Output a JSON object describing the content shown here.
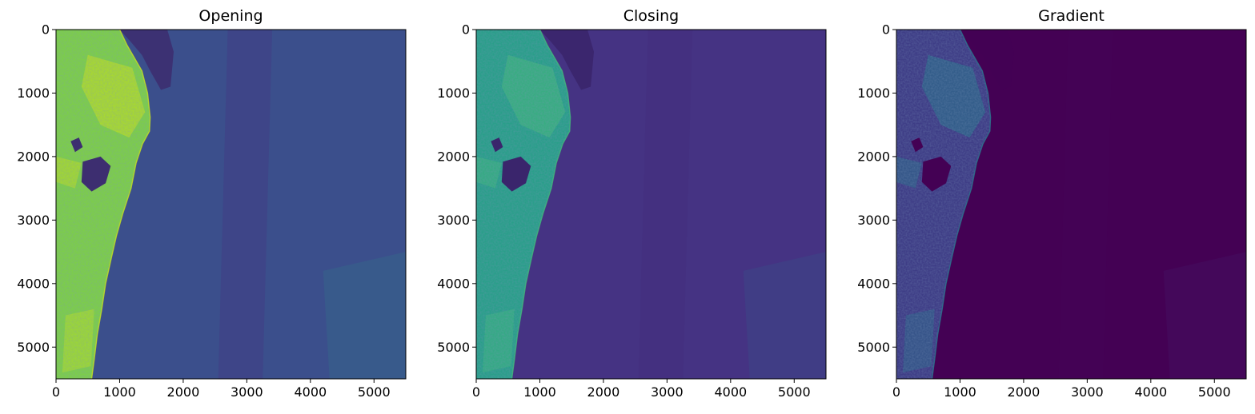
{
  "figure": {
    "panels": [
      {
        "title": "Opening"
      },
      {
        "title": "Closing"
      },
      {
        "title": "Gradient"
      }
    ]
  },
  "chart_data": [
    {
      "type": "heatmap",
      "title": "Opening",
      "colormap": "viridis",
      "xlim": [
        0,
        5500
      ],
      "ylim": [
        5500,
        0
      ],
      "x_ticks": [
        0,
        1000,
        2000,
        3000,
        4000,
        5000
      ],
      "y_ticks": [
        0,
        1000,
        2000,
        3000,
        4000,
        5000
      ],
      "x_tick_labels": [
        "0",
        "1000",
        "2000",
        "3000",
        "4000",
        "5000"
      ],
      "y_tick_labels": [
        "0",
        "1000",
        "2000",
        "3000",
        "4000",
        "5000"
      ],
      "colors": {
        "land": "#7ccd4a",
        "land_bright": "#c9e020",
        "land_dark": "#2f8f8a",
        "water": "#3b4f8c",
        "water_dark": "#453580",
        "lake": "#3d2e70"
      }
    },
    {
      "type": "heatmap",
      "title": "Closing",
      "colormap": "viridis",
      "xlim": [
        0,
        5500
      ],
      "ylim": [
        5500,
        0
      ],
      "x_ticks": [
        0,
        1000,
        2000,
        3000,
        4000,
        5000
      ],
      "y_ticks": [
        0,
        1000,
        2000,
        3000,
        4000,
        5000
      ],
      "x_tick_labels": [
        "0",
        "1000",
        "2000",
        "3000",
        "4000",
        "5000"
      ],
      "y_tick_labels": [
        "0",
        "1000",
        "2000",
        "3000",
        "4000",
        "5000"
      ],
      "colors": {
        "land": "#2a9e8a",
        "land_bright": "#45b87c",
        "land_dark": "#2c6f8e",
        "water": "#453383",
        "water_dark": "#432a7a",
        "lake": "#3a256c"
      }
    },
    {
      "type": "heatmap",
      "title": "Gradient",
      "colormap": "viridis",
      "xlim": [
        0,
        5500
      ],
      "ylim": [
        5500,
        0
      ],
      "x_ticks": [
        0,
        1000,
        2000,
        3000,
        4000,
        5000
      ],
      "y_ticks": [
        0,
        1000,
        2000,
        3000,
        4000,
        5000
      ],
      "x_tick_labels": [
        "0",
        "1000",
        "2000",
        "3000",
        "4000",
        "5000"
      ],
      "y_tick_labels": [
        "0",
        "1000",
        "2000",
        "3000",
        "4000",
        "5000"
      ],
      "colors": {
        "land": "#3e3d86",
        "land_bright": "#2a788e",
        "land_dark": "#472d7b",
        "water": "#440154",
        "water_dark": "#44065a",
        "lake": "#440154"
      }
    }
  ]
}
